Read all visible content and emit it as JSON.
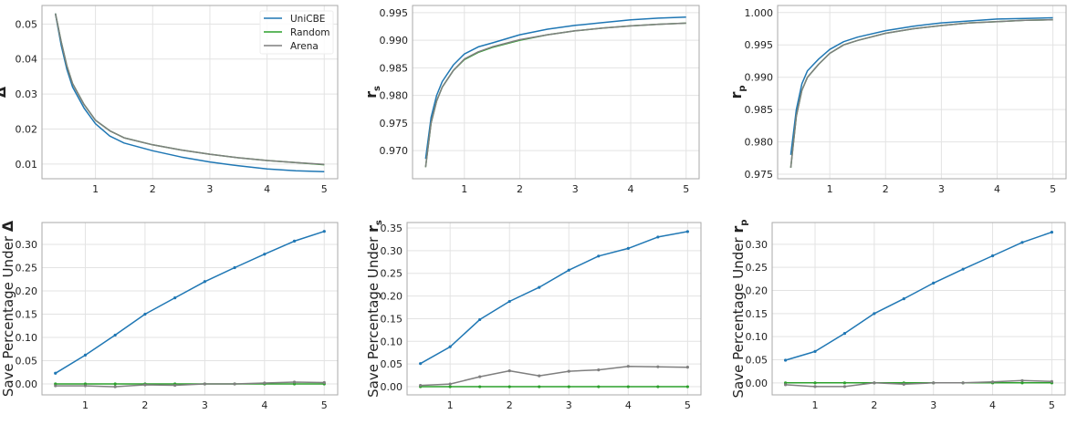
{
  "colors": {
    "UniCBE": "#1f77b4",
    "Random": "#2ca02c",
    "Arena": "#7f7f7f"
  },
  "legend": {
    "placement": "top-right",
    "entries": [
      "UniCBE",
      "Random",
      "Arena"
    ]
  },
  "chart_data": [
    {
      "type": "line",
      "grid": true,
      "ylabel": {
        "text": "",
        "sym": "Δ",
        "sub": ""
      },
      "xlim": [
        0.065,
        5.235
      ],
      "ylim": [
        0.0058,
        0.0553
      ],
      "xticks": [
        "1",
        "2",
        "3",
        "4",
        "5"
      ],
      "yticks": [
        "0.01",
        "0.02",
        "0.03",
        "0.04",
        "0.05"
      ],
      "x": [
        0.3,
        0.4,
        0.5,
        0.6,
        0.8,
        1,
        1.25,
        1.5,
        2,
        2.5,
        3,
        3.5,
        4,
        4.5,
        5
      ],
      "series": [
        {
          "name": "UniCBE",
          "values": [
            0.053,
            0.044,
            0.037,
            0.032,
            0.026,
            0.0215,
            0.018,
            0.016,
            0.0138,
            0.012,
            0.0106,
            0.0095,
            0.0086,
            0.0081,
            0.0078
          ]
        },
        {
          "name": "Random",
          "values": [
            0.053,
            0.045,
            0.038,
            0.033,
            0.027,
            0.0225,
            0.0195,
            0.0175,
            0.0155,
            0.014,
            0.0128,
            0.0118,
            0.011,
            0.0104,
            0.0098
          ]
        },
        {
          "name": "Arena",
          "values": [
            0.053,
            0.045,
            0.038,
            0.033,
            0.027,
            0.0225,
            0.0195,
            0.0175,
            0.0155,
            0.014,
            0.0128,
            0.0118,
            0.011,
            0.0104,
            0.0099
          ]
        }
      ]
    },
    {
      "type": "line",
      "grid": true,
      "ylabel": {
        "text": "",
        "sym": "r",
        "sub": "s"
      },
      "xlim": [
        0.065,
        5.235
      ],
      "ylim": [
        0.9649,
        0.9963
      ],
      "xticks": [
        "1",
        "2",
        "3",
        "4",
        "5"
      ],
      "yticks": [
        "0.970",
        "0.975",
        "0.980",
        "0.985",
        "0.990",
        "0.995"
      ],
      "x": [
        0.3,
        0.4,
        0.5,
        0.6,
        0.8,
        1,
        1.25,
        1.5,
        2,
        2.5,
        3,
        3.5,
        4,
        4.5,
        5
      ],
      "series": [
        {
          "name": "UniCBE",
          "values": [
            0.9685,
            0.976,
            0.98,
            0.9825,
            0.9855,
            0.9875,
            0.9888,
            0.9895,
            0.991,
            0.992,
            0.9927,
            0.9932,
            0.9937,
            0.994,
            0.9942
          ]
        },
        {
          "name": "Random",
          "values": [
            0.967,
            0.975,
            0.979,
            0.9815,
            0.9845,
            0.9865,
            0.9878,
            0.9887,
            0.99,
            0.991,
            0.9917,
            0.9922,
            0.9926,
            0.9929,
            0.9931
          ]
        },
        {
          "name": "Arena",
          "values": [
            0.967,
            0.975,
            0.979,
            0.9815,
            0.9845,
            0.9866,
            0.9879,
            0.9888,
            0.9901,
            0.991,
            0.9917,
            0.9922,
            0.9926,
            0.9929,
            0.9931
          ]
        }
      ]
    },
    {
      "type": "line",
      "grid": true,
      "ylabel": {
        "text": "",
        "sym": "r",
        "sub": "p"
      },
      "xlim": [
        0.065,
        5.235
      ],
      "ylim": [
        0.9743,
        1.0011
      ],
      "xticks": [
        "1",
        "2",
        "3",
        "4",
        "5"
      ],
      "yticks": [
        "0.975",
        "0.980",
        "0.985",
        "0.990",
        "0.995",
        "1.000"
      ],
      "x": [
        0.3,
        0.4,
        0.5,
        0.6,
        0.8,
        1,
        1.25,
        1.5,
        2,
        2.5,
        3,
        3.5,
        4,
        4.5,
        5
      ],
      "series": [
        {
          "name": "UniCBE",
          "values": [
            0.978,
            0.985,
            0.989,
            0.991,
            0.9928,
            0.9943,
            0.9955,
            0.9962,
            0.9972,
            0.9979,
            0.9984,
            0.9987,
            0.999,
            0.9991,
            0.9992
          ]
        },
        {
          "name": "Random",
          "values": [
            0.976,
            0.984,
            0.988,
            0.99,
            0.992,
            0.9937,
            0.995,
            0.9957,
            0.9968,
            0.9975,
            0.998,
            0.9984,
            0.9986,
            0.9988,
            0.9989
          ]
        },
        {
          "name": "Arena",
          "values": [
            0.976,
            0.984,
            0.988,
            0.99,
            0.992,
            0.9937,
            0.995,
            0.9957,
            0.9968,
            0.9975,
            0.998,
            0.9984,
            0.9986,
            0.9988,
            0.9989
          ]
        }
      ]
    },
    {
      "type": "line",
      "grid": true,
      "markers": true,
      "ylabel": {
        "text": "Save Percentage Under ",
        "sym": "Δ",
        "sub": ""
      },
      "xlim": [
        0.275,
        5.225
      ],
      "ylim": [
        -0.0235,
        0.347
      ],
      "xticks": [
        "1",
        "2",
        "3",
        "4",
        "5"
      ],
      "yticks": [
        "0.00",
        "0.05",
        "0.10",
        "0.15",
        "0.20",
        "0.25",
        "0.30"
      ],
      "x": [
        0.5,
        1,
        1.5,
        2,
        2.5,
        3,
        3.5,
        4,
        4.5,
        5
      ],
      "series": [
        {
          "name": "UniCBE",
          "values": [
            0.023,
            0.062,
            0.105,
            0.15,
            0.185,
            0.22,
            0.25,
            0.279,
            0.307,
            0.328
          ]
        },
        {
          "name": "Random",
          "values": [
            0,
            0,
            0,
            0,
            0,
            0,
            0,
            0,
            0,
            0
          ]
        },
        {
          "name": "Arena",
          "values": [
            -0.004,
            -0.004,
            -0.006,
            -0.002,
            -0.003,
            0,
            0,
            0.002,
            0.004,
            0.003
          ]
        }
      ]
    },
    {
      "type": "line",
      "grid": true,
      "markers": true,
      "ylabel": {
        "text": "Save Percentage Under ",
        "sym": "r",
        "sub": "s"
      },
      "xlim": [
        0.275,
        5.225
      ],
      "ylim": [
        -0.018,
        0.362
      ],
      "xticks": [
        "1",
        "2",
        "3",
        "4",
        "5"
      ],
      "yticks": [
        "0.00",
        "0.05",
        "0.10",
        "0.15",
        "0.20",
        "0.25",
        "0.30",
        "0.35"
      ],
      "x": [
        0.5,
        1,
        1.5,
        2,
        2.5,
        3,
        3.5,
        4,
        4.5,
        5
      ],
      "series": [
        {
          "name": "UniCBE",
          "values": [
            0.051,
            0.088,
            0.148,
            0.188,
            0.219,
            0.257,
            0.288,
            0.305,
            0.33,
            0.342
          ]
        },
        {
          "name": "Random",
          "values": [
            0,
            0,
            0,
            0,
            0,
            0,
            0,
            0,
            0,
            0
          ]
        },
        {
          "name": "Arena",
          "values": [
            0.003,
            0.006,
            0.022,
            0.035,
            0.024,
            0.034,
            0.037,
            0.045,
            0.044,
            0.043
          ]
        }
      ]
    },
    {
      "type": "line",
      "grid": true,
      "markers": true,
      "ylabel": {
        "text": "Save Percentage Under ",
        "sym": "r",
        "sub": "p"
      },
      "xlim": [
        0.275,
        5.225
      ],
      "ylim": [
        -0.026,
        0.347
      ],
      "xticks": [
        "1",
        "2",
        "3",
        "4",
        "5"
      ],
      "yticks": [
        "0.00",
        "0.05",
        "0.10",
        "0.15",
        "0.20",
        "0.25",
        "0.30"
      ],
      "x": [
        0.5,
        1,
        1.5,
        2,
        2.5,
        3,
        3.5,
        4,
        4.5,
        5
      ],
      "series": [
        {
          "name": "UniCBE",
          "values": [
            0.049,
            0.068,
            0.107,
            0.15,
            0.182,
            0.216,
            0.246,
            0.275,
            0.304,
            0.326
          ]
        },
        {
          "name": "Random",
          "values": [
            0,
            0,
            0,
            0,
            0,
            0,
            0,
            0,
            0,
            0
          ]
        },
        {
          "name": "Arena",
          "values": [
            -0.004,
            -0.008,
            -0.008,
            0,
            -0.003,
            0,
            0,
            0.002,
            0.005,
            0.003
          ]
        }
      ]
    }
  ]
}
